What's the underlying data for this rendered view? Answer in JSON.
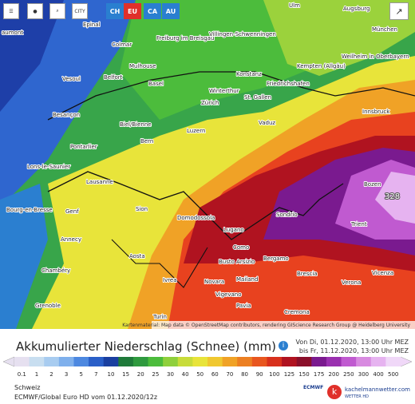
{
  "toolbar": {
    "city": "CITY",
    "regions": [
      "CH",
      "EU",
      "CA",
      "AU"
    ]
  },
  "attribution": "Kartenmaterial: Map data © OpenStreetMap contributors, rendering GIScience Research Group @ Heidelberg University",
  "places": [
    {
      "label": "aumont"
    },
    {
      "label": "Epinal"
    },
    {
      "label": "Colmar"
    },
    {
      "label": "Freiburg im Breisgau"
    },
    {
      "label": "Villingen-Schwenningen"
    },
    {
      "label": "Ulm"
    },
    {
      "label": "Augsburg"
    },
    {
      "label": "München"
    },
    {
      "label": "Kempten (Allgäu)"
    },
    {
      "label": "Weilheim in Oberbayern"
    },
    {
      "label": "Vesoul"
    },
    {
      "label": "Belfort"
    },
    {
      "label": "Mulhouse"
    },
    {
      "label": "Basel"
    },
    {
      "label": "Konstanz"
    },
    {
      "label": "Friedrichshafen"
    },
    {
      "label": "Winterthur"
    },
    {
      "label": "Zürich"
    },
    {
      "label": "St. Gallen"
    },
    {
      "label": "Innsbruck"
    },
    {
      "label": "Besançon"
    },
    {
      "label": "Biel/Bienne"
    },
    {
      "label": "Bern"
    },
    {
      "label": "Luzern"
    },
    {
      "label": "Vaduz"
    },
    {
      "label": "Pontarlier"
    },
    {
      "label": "Lons-le-Saunier"
    },
    {
      "label": "Lausanne"
    },
    {
      "label": "Bourg-en-Bresse"
    },
    {
      "label": "Genf"
    },
    {
      "label": "Sion"
    },
    {
      "label": "Domodossola"
    },
    {
      "label": "Sondrio"
    },
    {
      "label": "Bozen"
    },
    {
      "label": "Trient"
    },
    {
      "label": "Lugano"
    },
    {
      "label": "Como"
    },
    {
      "label": "Annecy"
    },
    {
      "label": "Aosta"
    },
    {
      "label": "Bergamo"
    },
    {
      "label": "Brescia"
    },
    {
      "label": "Chambéry"
    },
    {
      "label": "Ivrea"
    },
    {
      "label": "Busto Arsizio"
    },
    {
      "label": "Novara"
    },
    {
      "label": "Mailand"
    },
    {
      "label": "Vigevano"
    },
    {
      "label": "Verona"
    },
    {
      "label": "Vicenza"
    },
    {
      "label": "Grenoble"
    },
    {
      "label": "Turin"
    },
    {
      "label": "Pavia"
    },
    {
      "label": "Cremona"
    },
    {
      "label": "328"
    }
  ],
  "legend": {
    "title": "Akkumulierter Niederschlag (Schnee) (mm)",
    "valid_from": "Von Di, 01.12.2020, 13:00 Uhr MEZ",
    "valid_to": "bis Fr, 11.12.2020, 13:00 Uhr MEZ",
    "labels": [
      "0.1",
      "1",
      "2",
      "3",
      "5",
      "7",
      "10",
      "15",
      "20",
      "25",
      "30",
      "40",
      "50",
      "60",
      "70",
      "80",
      "90",
      "100",
      "125",
      "150",
      "175",
      "200",
      "250",
      "300",
      "400",
      "500"
    ],
    "colors": [
      "#e6e0f0",
      "#c8def0",
      "#a8ccf0",
      "#7fb0ec",
      "#4d88e0",
      "#2a5fc8",
      "#1a3fa0",
      "#1f7a3a",
      "#2f9a3f",
      "#4cbc3c",
      "#8fd03c",
      "#c8dc3a",
      "#e8e43a",
      "#f0c830",
      "#f0a226",
      "#ec7f22",
      "#e8561f",
      "#d8301c",
      "#b01320",
      "#8a0f2a",
      "#7a1a8f",
      "#9a30b0",
      "#c05ad0",
      "#d88ae0",
      "#e6b3f0",
      "#f0d8f8"
    ]
  },
  "footer": {
    "region": "Schweiz",
    "model": "ECMWF/Global Euro HD vom 01.12.2020/12z",
    "logo_ecmwf": "ECMWF",
    "brand": "kachelmannwetter.com",
    "brand_sub": "WETTER HD"
  }
}
